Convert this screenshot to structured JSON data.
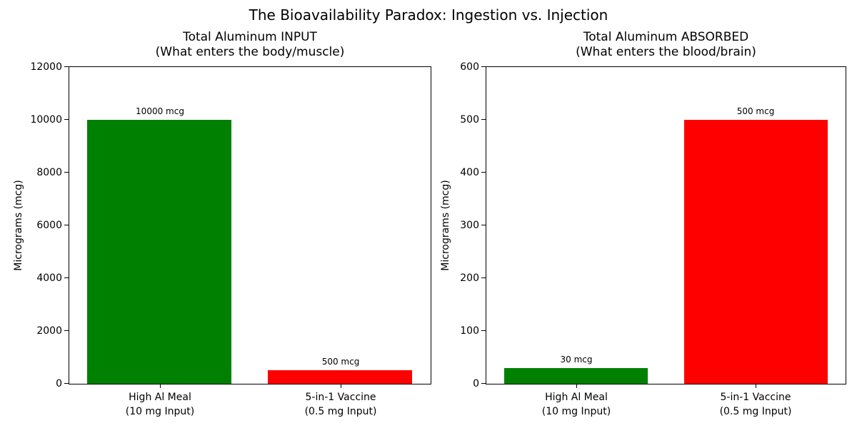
{
  "figure_title": "The Bioavailability Paradox: Ingestion vs. Injection",
  "colors": {
    "ingestion_bar": "#008000",
    "injection_bar": "#ff0000",
    "text": "#000000",
    "background": "#ffffff",
    "axis": "#000000"
  },
  "chart_data": [
    {
      "type": "bar",
      "title": "Total Aluminum INPUT\n(What enters the body/muscle)",
      "xlabel": "",
      "ylabel": "Micrograms (mcg)",
      "categories": [
        "High Al Meal\n(10 mg Input)",
        "5-in-1 Vaccine\n(0.5 mg Input)"
      ],
      "values": [
        10000,
        500
      ],
      "bar_labels": [
        "10000 mcg",
        "500 mcg"
      ],
      "bar_colors": [
        "#008000",
        "#ff0000"
      ],
      "ylim": [
        0,
        12000
      ],
      "yticks": [
        0,
        2000,
        4000,
        6000,
        8000,
        10000,
        12000
      ],
      "grid": false,
      "legend": false
    },
    {
      "type": "bar",
      "title": "Total Aluminum ABSORBED\n(What enters the blood/brain)",
      "xlabel": "",
      "ylabel": "Micrograms (mcg)",
      "categories": [
        "High Al Meal\n(10 mg Input)",
        "5-in-1 Vaccine\n(0.5 mg Input)"
      ],
      "values": [
        30,
        500
      ],
      "bar_labels": [
        "30 mcg",
        "500 mcg"
      ],
      "bar_colors": [
        "#008000",
        "#ff0000"
      ],
      "ylim": [
        0,
        600
      ],
      "yticks": [
        0,
        100,
        200,
        300,
        400,
        500,
        600
      ],
      "grid": false,
      "legend": false
    }
  ]
}
